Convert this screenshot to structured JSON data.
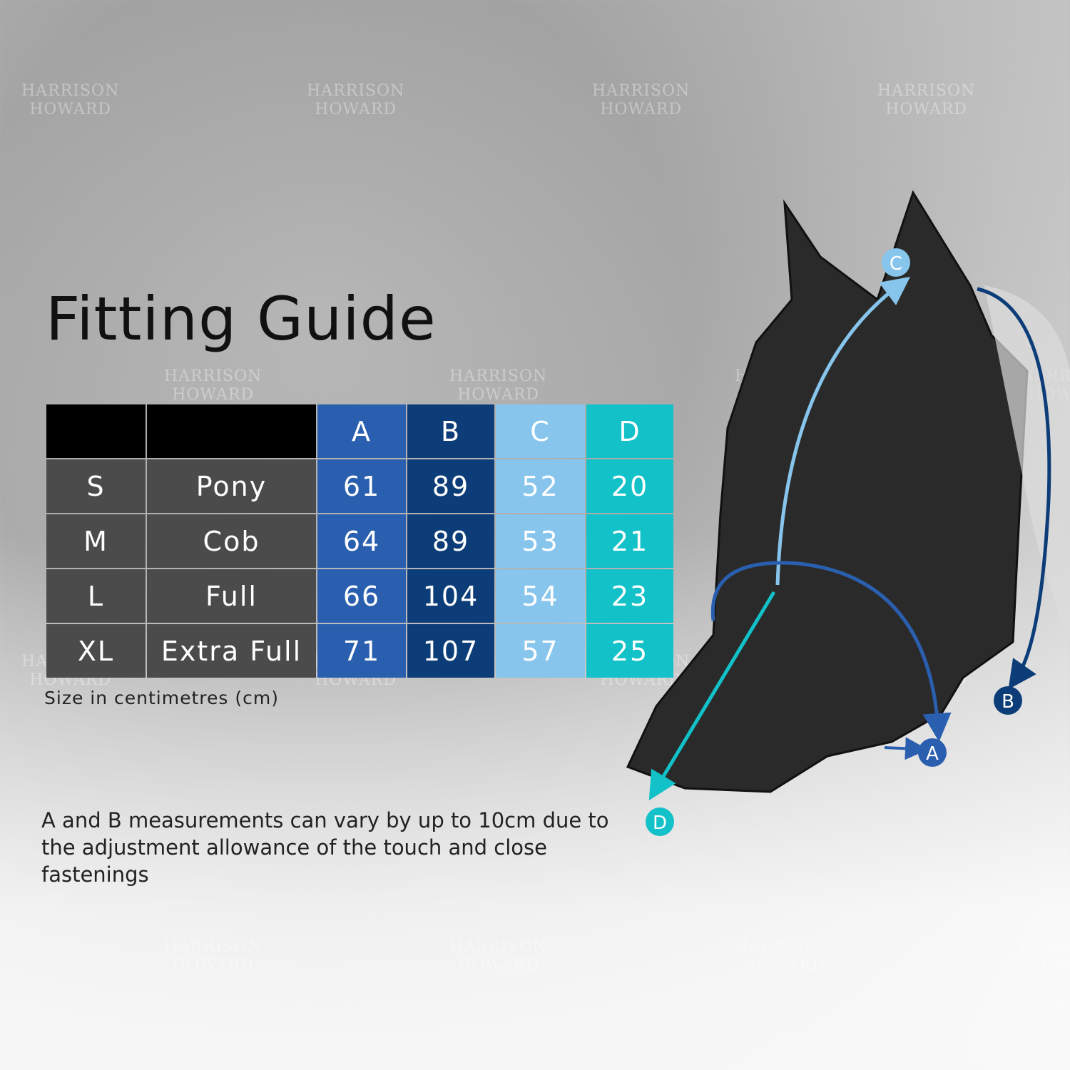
{
  "title": "Fitting Guide",
  "watermark": "HARRISON HOWARD",
  "table": {
    "headers": [
      "",
      "",
      "A",
      "B",
      "C",
      "D"
    ],
    "header_colors": {
      "A": "#2a5faf",
      "B": "#0d3d78",
      "C": "#87c5ec",
      "D": "#13c1c8"
    },
    "rows": [
      {
        "size": "S",
        "name": "Pony",
        "A": "61",
        "B": "89",
        "C": "52",
        "D": "20"
      },
      {
        "size": "M",
        "name": "Cob",
        "A": "64",
        "B": "89",
        "C": "53",
        "D": "21"
      },
      {
        "size": "L",
        "name": "Full",
        "A": "66",
        "B": "104",
        "C": "54",
        "D": "23"
      },
      {
        "size": "XL",
        "name": "Extra Full",
        "A": "71",
        "B": "107",
        "C": "57",
        "D": "25"
      }
    ]
  },
  "unit_note": "Size in centimetres (cm)",
  "footnote": "A and B measurements can vary by up to 10cm due to the adjustment allowance of the touch and close fastenings",
  "diagram_labels": {
    "A": "A",
    "B": "B",
    "C": "C",
    "D": "D"
  }
}
